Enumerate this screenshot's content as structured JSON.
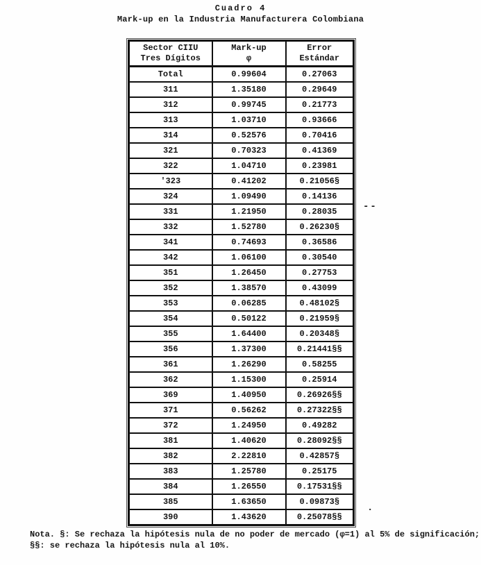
{
  "title": {
    "line1": "Cuadro 4",
    "line2": "Mark-up en la Industria Manufacturera Colombiana"
  },
  "table": {
    "headers": [
      {
        "line1": "Sector CIIU",
        "line2": "Tres Dígitos"
      },
      {
        "line1": "Mark-up",
        "line2": "φ"
      },
      {
        "line1": "Error",
        "line2": "Estándar"
      }
    ],
    "rows": [
      {
        "sector": "Total",
        "markup": "0.99604",
        "error": "0.27063"
      },
      {
        "sector": "311",
        "markup": "1.35180",
        "error": "0.29649"
      },
      {
        "sector": "312",
        "markup": "0.99745",
        "error": "0.21773"
      },
      {
        "sector": "313",
        "markup": "1.03710",
        "error": "0.93666"
      },
      {
        "sector": "314",
        "markup": "0.52576",
        "error": "0.70416"
      },
      {
        "sector": "321",
        "markup": "0.70323",
        "error": "0.41369"
      },
      {
        "sector": "322",
        "markup": "1.04710",
        "error": "0.23981"
      },
      {
        "sector": "'323",
        "markup": "0.41202",
        "error": "0.21056§"
      },
      {
        "sector": "324",
        "markup": "1.09490",
        "error": "0.14136"
      },
      {
        "sector": "331",
        "markup": "1.21950",
        "error": "0.28035"
      },
      {
        "sector": "332",
        "markup": "1.52780",
        "error": "0.26230§"
      },
      {
        "sector": "341",
        "markup": "0.74693",
        "error": "0.36586"
      },
      {
        "sector": "342",
        "markup": "1.06100",
        "error": "0.30540"
      },
      {
        "sector": "351",
        "markup": "1.26450",
        "error": "0.27753"
      },
      {
        "sector": "352",
        "markup": "1.38570",
        "error": "0.43099"
      },
      {
        "sector": "353",
        "markup": "0.06285",
        "error": "0.48102§"
      },
      {
        "sector": "354",
        "markup": "0.50122",
        "error": "0.21959§"
      },
      {
        "sector": "355",
        "markup": "1.64400",
        "error": "0.20348§"
      },
      {
        "sector": "356",
        "markup": "1.37300",
        "error": "0.21441§§"
      },
      {
        "sector": "361",
        "markup": "1.26290",
        "error": "0.58255"
      },
      {
        "sector": "362",
        "markup": "1.15300",
        "error": "0.25914"
      },
      {
        "sector": "369",
        "markup": "1.40950",
        "error": "0.26926§§"
      },
      {
        "sector": "371",
        "markup": "0.56262",
        "error": "0.27322§§"
      },
      {
        "sector": "372",
        "markup": "1.24950",
        "error": "0.49282"
      },
      {
        "sector": "381",
        "markup": "1.40620",
        "error": "0.28092§§"
      },
      {
        "sector": "382",
        "markup": "2.22810",
        "error": "0.42857§"
      },
      {
        "sector": "383",
        "markup": "1.25780",
        "error": "0.25175"
      },
      {
        "sector": "384",
        "markup": "1.26550",
        "error": "0.17531§§"
      },
      {
        "sector": "385",
        "markup": "1.63650",
        "error": "0.09873§"
      },
      {
        "sector": "390",
        "markup": "1.43620",
        "error": "0.25078§§"
      }
    ]
  },
  "annotations": {
    "margin_dash": "--",
    "stray_dot": "."
  },
  "note": {
    "line1": "Nota. §: Se rechaza la hipótesis nula de no poder de mercado (φ=1) al 5% de significación;",
    "line2": "§§: se rechaza la hipótesis nula al 10%."
  }
}
